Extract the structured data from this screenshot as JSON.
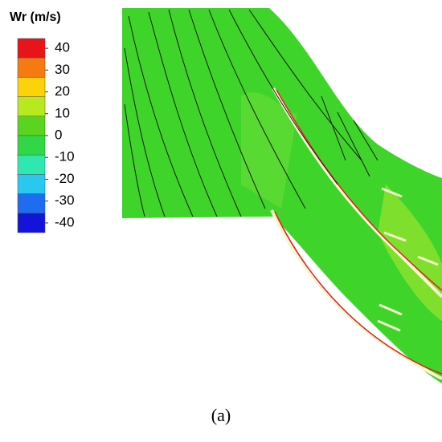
{
  "chart_data": {
    "type": "contour",
    "colorbar": {
      "title": "Wr (m/s)",
      "ticks": [
        40,
        30,
        20,
        10,
        0,
        -10,
        -20,
        -30,
        -40
      ],
      "colors": [
        "#e8141a",
        "#f57a10",
        "#fcd20a",
        "#b8e81e",
        "#5ad41e",
        "#30d848",
        "#2ee8b0",
        "#28c8f0",
        "#1e6cf0",
        "#1414d8"
      ]
    },
    "caption": "(a)"
  }
}
